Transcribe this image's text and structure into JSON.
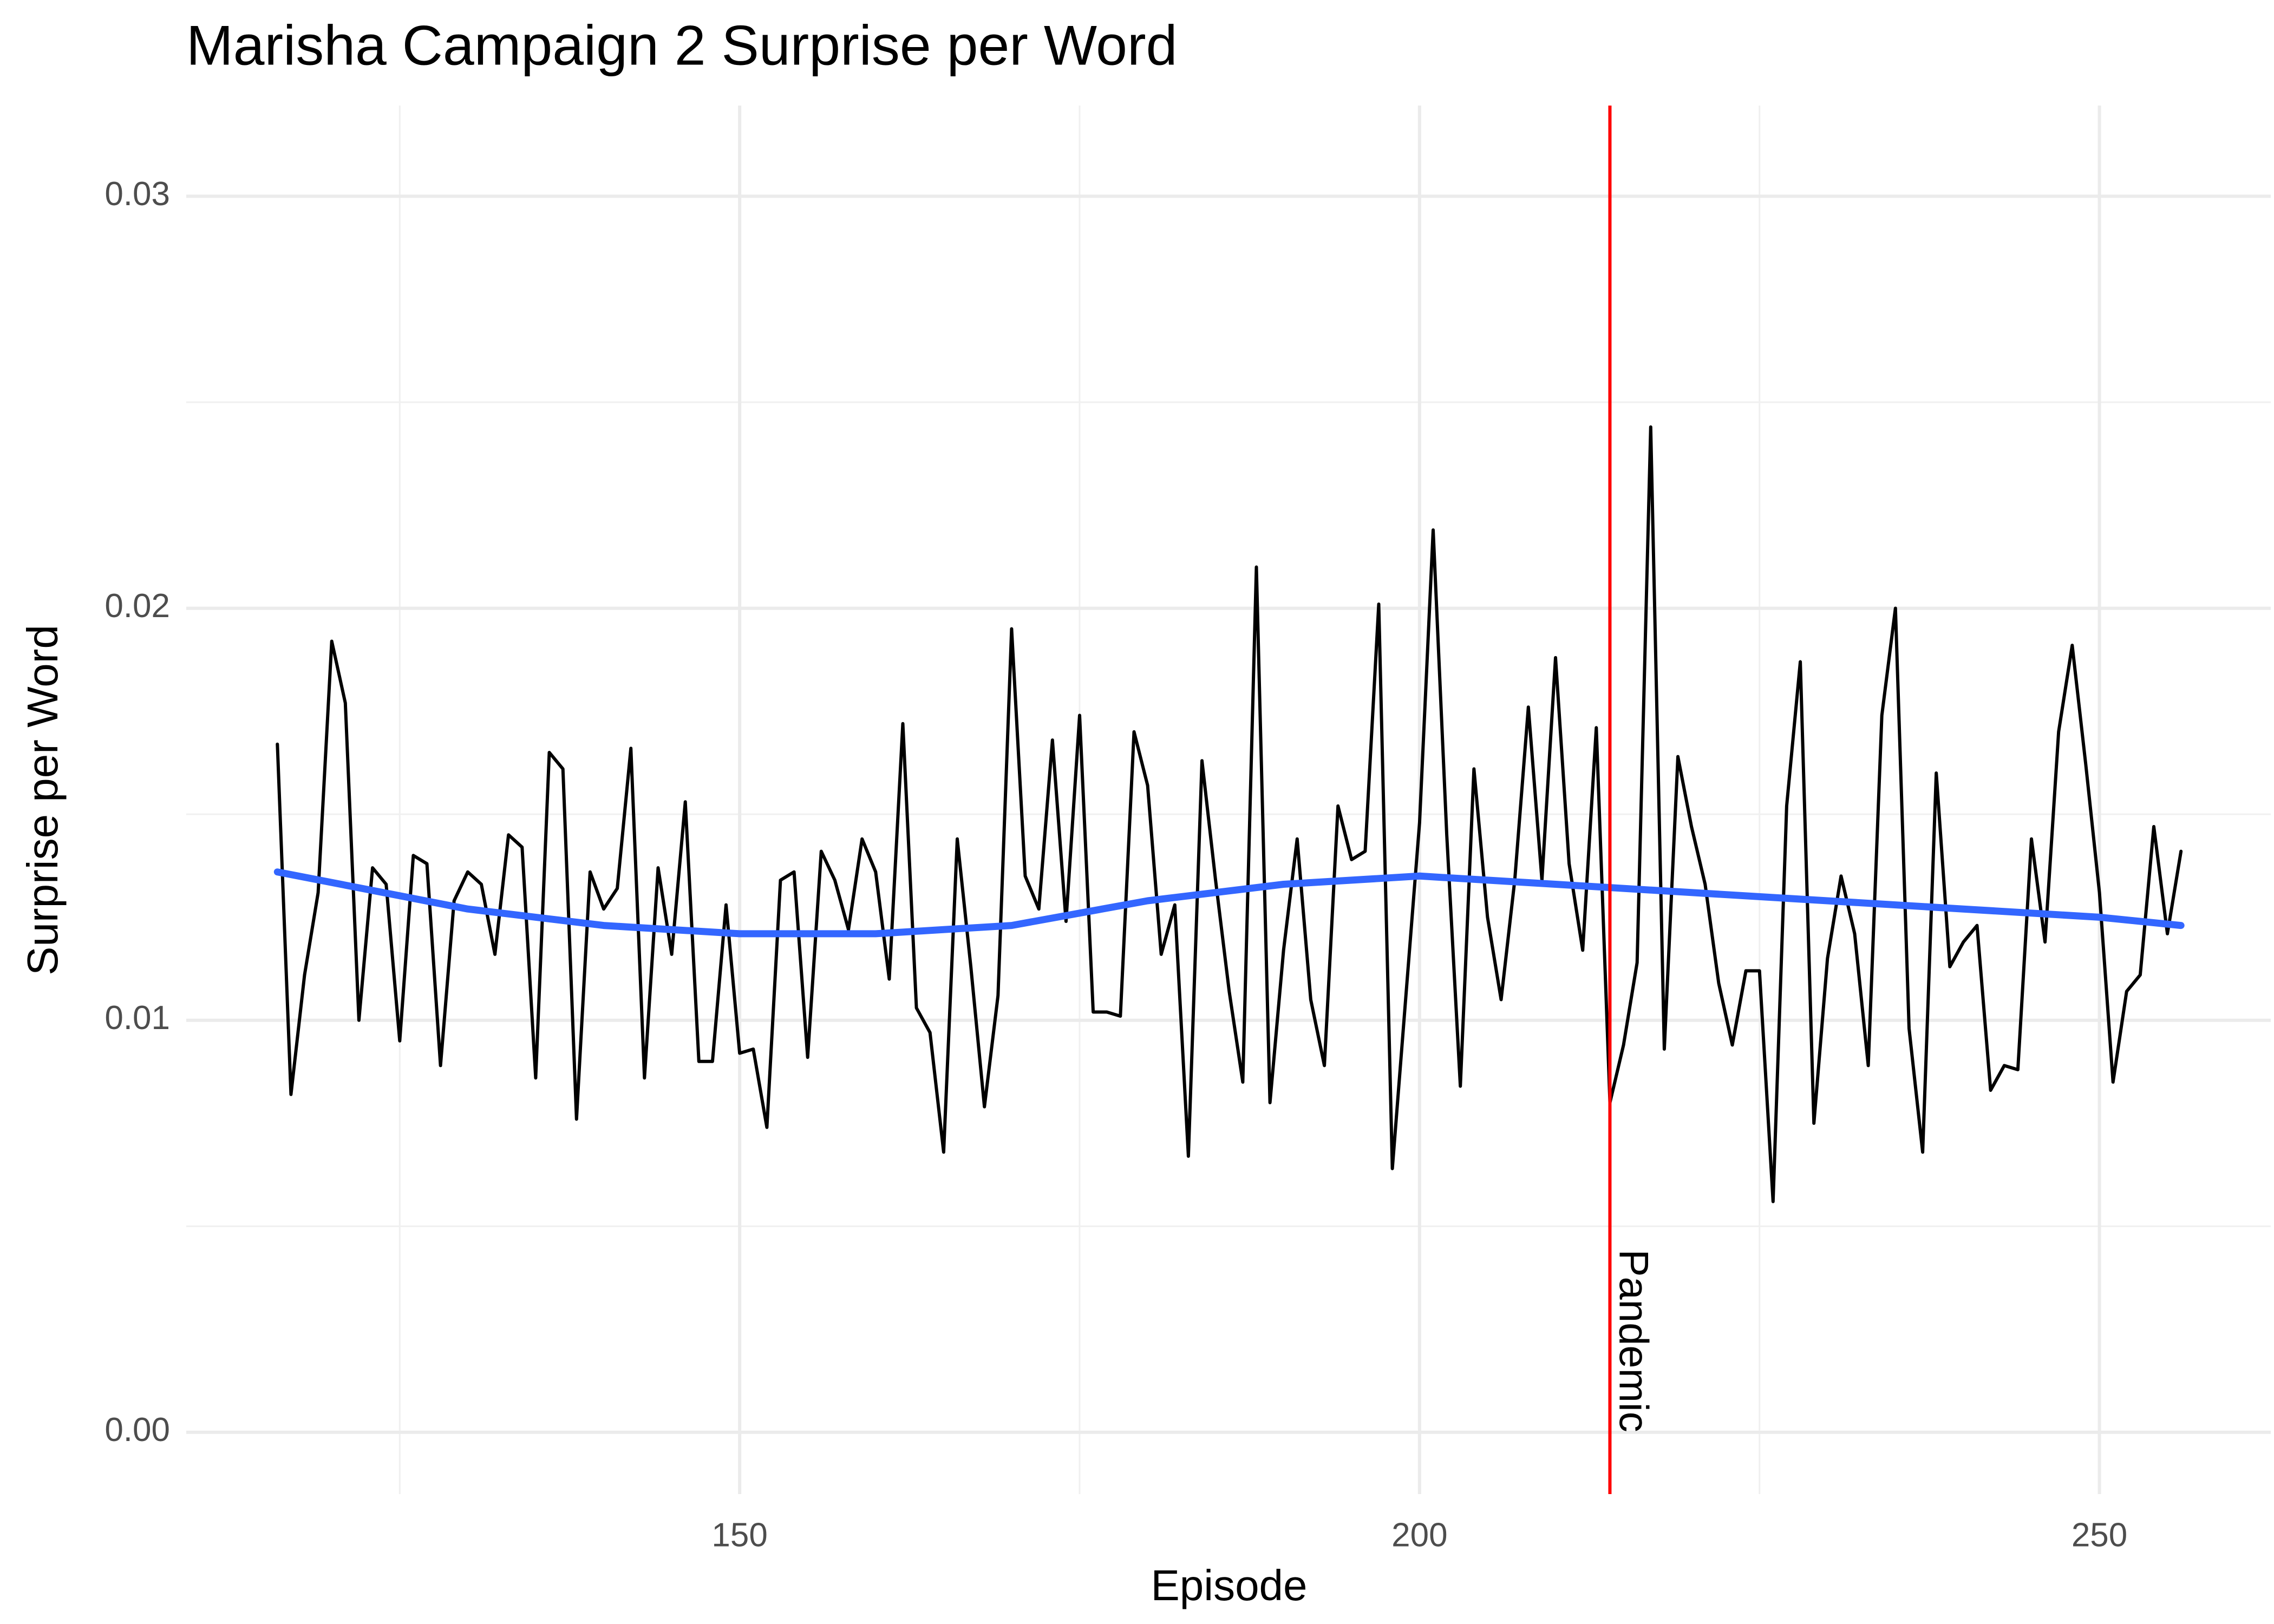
{
  "chart_data": {
    "type": "line",
    "title": "Marisha Campaign 2 Surprise per Word",
    "x_label": "Episode",
    "y_label": "Surprise per Word",
    "x": [
      116,
      117,
      118,
      119,
      120,
      121,
      122,
      123,
      124,
      125,
      126,
      127,
      128,
      129,
      130,
      131,
      132,
      133,
      134,
      135,
      136,
      137,
      138,
      139,
      140,
      141,
      142,
      143,
      144,
      145,
      146,
      147,
      148,
      149,
      150,
      151,
      152,
      153,
      154,
      155,
      156,
      157,
      158,
      159,
      160,
      161,
      162,
      163,
      164,
      165,
      166,
      167,
      168,
      169,
      170,
      171,
      172,
      173,
      174,
      175,
      176,
      177,
      178,
      179,
      180,
      181,
      182,
      183,
      184,
      185,
      186,
      187,
      188,
      189,
      190,
      191,
      192,
      193,
      194,
      195,
      196,
      197,
      198,
      199,
      200,
      201,
      202,
      203,
      204,
      205,
      206,
      207,
      208,
      209,
      210,
      211,
      212,
      213,
      214,
      215,
      216,
      217,
      218,
      219,
      220,
      221,
      222,
      223,
      224,
      225,
      226,
      227,
      228,
      229,
      230,
      231,
      232,
      233,
      234,
      235,
      236,
      237,
      238,
      239,
      240,
      241,
      242,
      243,
      244,
      245,
      246,
      247,
      248,
      249,
      250,
      251,
      252,
      253,
      254,
      255,
      256
    ],
    "series": [
      {
        "color": "#000000",
        "values": [
          0.0167,
          0.0082,
          0.0111,
          0.0131,
          0.0192,
          0.0177,
          0.01,
          0.0137,
          0.0133,
          0.0095,
          0.014,
          0.0138,
          0.0089,
          0.0129,
          0.0136,
          0.0133,
          0.0116,
          0.0145,
          0.0142,
          0.0086,
          0.0165,
          0.0161,
          0.0076,
          0.0136,
          0.0127,
          0.0132,
          0.0166,
          0.0086,
          0.0137,
          0.0116,
          0.0153,
          0.009,
          0.009,
          0.0128,
          0.0092,
          0.0093,
          0.0074,
          0.0134,
          0.0136,
          0.0091,
          0.0141,
          0.0134,
          0.0122,
          0.0144,
          0.0136,
          0.011,
          0.0172,
          0.0103,
          0.0097,
          0.0068,
          0.0144,
          0.0113,
          0.0079,
          0.0106,
          0.0195,
          0.0135,
          0.0127,
          0.0168,
          0.0124,
          0.0174,
          0.0102,
          0.0102,
          0.0101,
          0.017,
          0.0157,
          0.0116,
          0.0128,
          0.0067,
          0.0163,
          0.0134,
          0.0107,
          0.0085,
          0.021,
          0.008,
          0.0117,
          0.0144,
          0.0105,
          0.0089,
          0.0152,
          0.0139,
          0.0141,
          0.0201,
          0.0064,
          0.0106,
          0.0148,
          0.0219,
          0.0145,
          0.0084,
          0.0161,
          0.0125,
          0.0105,
          0.0134,
          0.0176,
          0.0134,
          0.0188,
          0.0138,
          0.0117,
          0.0171,
          0.008,
          0.0094,
          0.0114,
          0.0244,
          0.0093,
          0.0164,
          0.0147,
          0.0133,
          0.0109,
          0.0094,
          0.0112,
          0.0112,
          0.0056,
          0.0152,
          0.0187,
          0.0075,
          0.0115,
          0.0135,
          0.0121,
          0.0089,
          0.0174,
          0.02,
          0.0098,
          0.0068,
          0.016,
          0.0113,
          0.0119,
          0.0123,
          0.0083,
          0.0089,
          0.0088,
          0.0144,
          0.0119,
          0.017,
          0.0191,
          0.0162,
          0.0131,
          0.0085,
          0.0107,
          0.0111,
          0.0147,
          0.0121,
          0.0141
        ]
      },
      {
        "color": "#3366ff",
        "x": [
          116,
          130,
          140,
          150,
          160,
          170,
          180,
          190,
          200,
          210,
          220,
          230,
          240,
          250,
          256
        ],
        "values": [
          0.0136,
          0.0127,
          0.0123,
          0.0121,
          0.0121,
          0.0123,
          0.0129,
          0.0133,
          0.0135,
          0.0133,
          0.0131,
          0.0129,
          0.0127,
          0.0125,
          0.0123
        ]
      }
    ],
    "annotation": {
      "x": 214,
      "text": "Pandemic",
      "color": "#ff0000"
    },
    "xlim": [
      109.3,
      262.6
    ],
    "ylim": [
      -0.0015,
      0.0322
    ],
    "xticks": [
      150,
      200,
      250
    ],
    "yticks": [
      {
        "value": 0,
        "label": "0.00"
      },
      0.01,
      0.02,
      0.03
    ],
    "minor_xticks": [
      125,
      175,
      225
    ],
    "minor_yticks": [
      0.005,
      0.015,
      0.025
    ],
    "grid": true
  }
}
